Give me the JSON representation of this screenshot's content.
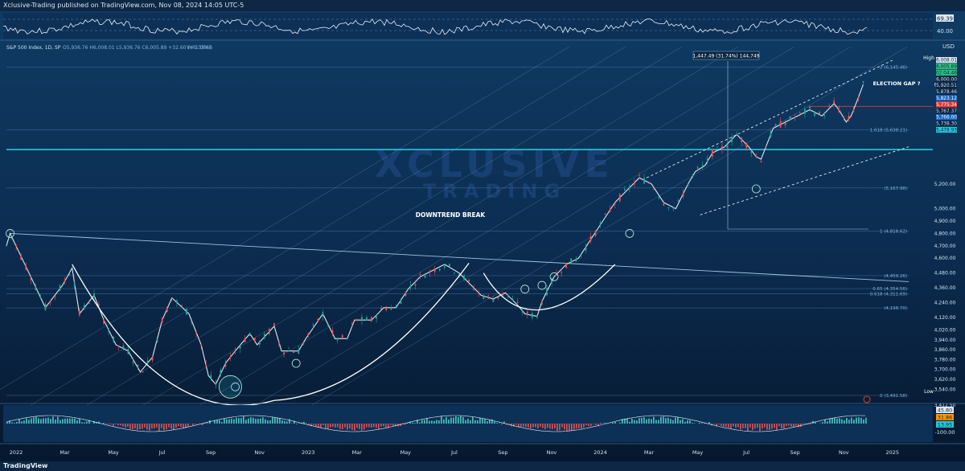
{
  "header": {
    "text": "Xclusive-Trading published on TradingView.com, Nov 08, 2024 14:05 UTC-5"
  },
  "footer": {
    "text": "TradingView"
  },
  "main": {
    "symbol_line": "S&P 500 Index, 1D, SP",
    "ohlc": "O5,936.76 H6,008.01 L5,936.76 C6,005.89 +32.60 (+0.55%)",
    "volume": "Vol 1.066B",
    "currency": "USD",
    "watermark_line1": "XCLUSIVE",
    "watermark_line2": "TRADING"
  },
  "annotations": {
    "downtrend_break": "DOWNTREND BREAK",
    "election_gap": "ELECTION GAP ?",
    "measure": "1,447.49 (31.74%) 144,749",
    "high_label": "High",
    "low_label": "Low"
  },
  "price_badges": [
    {
      "text": "6,008.01",
      "color": "#dfe8f2",
      "fg": "#0b2440"
    },
    {
      "text": "6,005.89",
      "color": "#2ec27e",
      "fg": "#0b2440"
    },
    {
      "text": "02:04:46",
      "color": "#2ec27e",
      "fg": "#0b2440"
    },
    {
      "text": "6,000.00",
      "color": "#0b2440",
      "fg": "#cfe3f5"
    },
    {
      "text": "5,920.51",
      "color": "#0b2440",
      "fg": "#cfe3f5"
    },
    {
      "text": "5,878.46",
      "color": "#0b2440",
      "fg": "#cfe3f5"
    },
    {
      "text": "5,823.12",
      "color": "#1565c0",
      "fg": "#ffffff"
    },
    {
      "text": "5,775.34",
      "color": "#e53935",
      "fg": "#ffffff"
    },
    {
      "text": "5,767.37",
      "color": "#0b2440",
      "fg": "#cfe3f5"
    },
    {
      "text": "5,766.00",
      "color": "#1565c0",
      "fg": "#ffffff"
    },
    {
      "text": "5,738.30",
      "color": "#0b2440",
      "fg": "#cfe3f5"
    },
    {
      "text": "5,478.93",
      "color": "#26c6da",
      "fg": "#0b2440"
    }
  ],
  "fib_labels": [
    {
      "text": "2 (6,145.46)",
      "price": 6145
    },
    {
      "text": "1.618 (5,638.21)",
      "price": 5638
    },
    {
      "text": "(5,167.98)",
      "price": 5168
    },
    {
      "text": "1 (4,818.62)",
      "price": 4818
    },
    {
      "text": "(4,459.26)",
      "price": 4459
    },
    {
      "text": "0.65 (4,354.56)",
      "price": 4354
    },
    {
      "text": "0.618 (4,311.69)",
      "price": 4311
    },
    {
      "text": "(4,198.70)",
      "price": 4198
    },
    {
      "text": "0 (3,491.58)",
      "price": 3491
    }
  ],
  "rsi_panel": {
    "levels": [
      "69.39",
      "40.00"
    ]
  },
  "macd_panel": {
    "levels": [
      "45.80",
      "31.86",
      "13.95",
      "-100.00"
    ]
  },
  "chart_data": {
    "type": "line",
    "title": "S&P 500 Index, 1D, SP",
    "ylim": [
      3412.5,
      6180
    ],
    "y_ticks": [
      "6,000.00",
      "5,200.00",
      "5,000.00",
      "4,900.00",
      "4,800.00",
      "4,700.00",
      "4,600.00",
      "4,480.00",
      "4,360.00",
      "4,240.00",
      "4,120.00",
      "4,020.00",
      "3,940.00",
      "3,860.00",
      "3,780.00",
      "3,700.00",
      "3,620.00",
      "3,540.00",
      "3,412.50"
    ],
    "x_ticks": [
      "2022",
      "Mar",
      "May",
      "Jul",
      "Sep",
      "Nov",
      "2023",
      "Mar",
      "May",
      "Jul",
      "Sep",
      "Nov",
      "2024",
      "Mar",
      "May",
      "Jul",
      "Sep",
      "Nov",
      "2025"
    ],
    "x_tick_months": [
      0,
      2,
      4,
      6,
      8,
      10,
      12,
      14,
      16,
      18,
      20,
      22,
      24,
      26,
      28,
      30,
      32,
      34,
      36
    ],
    "series": [
      {
        "x_month": [
          0,
          0.15,
          1,
          1.6,
          2.3,
          2.7,
          3,
          3.6,
          4,
          4.5,
          5,
          5.5,
          6,
          6.4,
          6.8,
          7.5,
          8,
          8.3,
          8.6,
          9,
          9.4,
          10,
          10.3,
          11,
          11.3,
          12,
          12.3,
          13,
          13.5,
          14,
          14.3,
          15,
          15.5,
          16,
          16.5,
          17,
          17.5,
          18,
          18.6,
          19,
          19.5,
          20,
          20.5,
          21,
          21.3,
          21.8,
          22,
          22.5,
          23,
          23.5,
          24,
          24.5,
          25,
          25.5,
          26,
          26.5,
          27,
          27.5,
          28,
          28.3,
          28.7,
          29,
          29.5,
          30,
          30.5,
          30.8,
          31,
          31.2,
          31.5,
          32,
          32.5,
          33,
          33.5,
          34,
          34.2,
          34.5,
          34.7,
          35,
          35.2
        ],
        "values": [
          4700,
          4800,
          4450,
          4200,
          4380,
          4520,
          4150,
          4300,
          4100,
          3900,
          3850,
          3680,
          3800,
          4100,
          4280,
          4150,
          3900,
          3650,
          3580,
          3750,
          3850,
          3990,
          3900,
          4050,
          3850,
          3850,
          3950,
          4150,
          3950,
          3950,
          4100,
          4100,
          4200,
          4200,
          4350,
          4450,
          4500,
          4550,
          4480,
          4400,
          4300,
          4270,
          4320,
          4220,
          4150,
          4130,
          4250,
          4450,
          4550,
          4600,
          4750,
          4900,
          5050,
          5150,
          5250,
          5200,
          5050,
          5000,
          5200,
          5300,
          5350,
          5450,
          5500,
          5600,
          5500,
          5420,
          5400,
          5500,
          5650,
          5700,
          5750,
          5800,
          5750,
          5850,
          5800,
          5700,
          5750,
          5900,
          6005
        ]
      }
    ]
  }
}
